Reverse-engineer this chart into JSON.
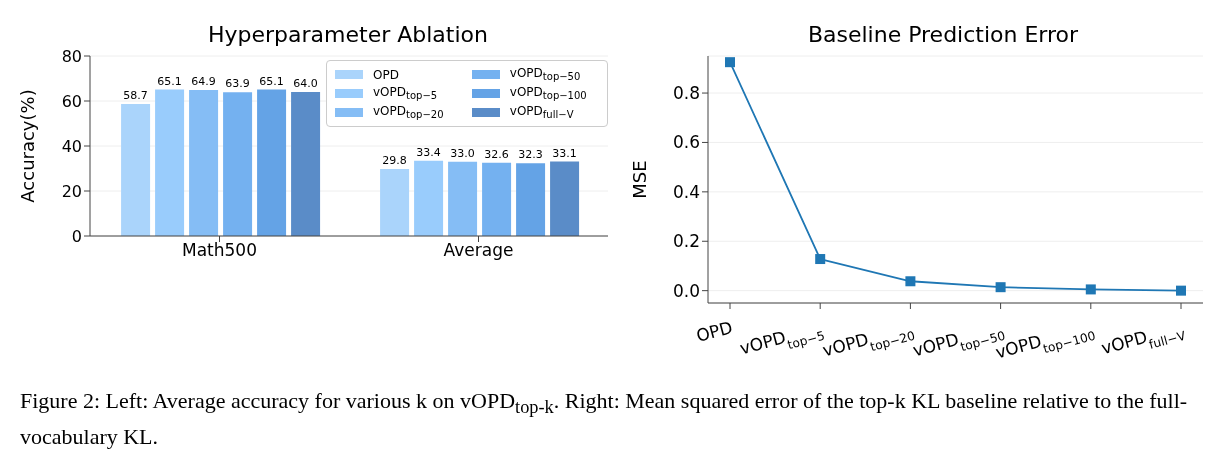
{
  "chart_data": [
    {
      "type": "bar",
      "title": "Hyperparameter Ablation",
      "ylabel": "Accuracy(%)",
      "categories": [
        "Math500",
        "Average"
      ],
      "series": [
        {
          "name": "OPD",
          "color": "#aad4fb",
          "values": [
            58.7,
            29.8
          ],
          "value_labels": [
            "58.7",
            "29.8"
          ]
        },
        {
          "name": "vOPD$_{top−5}$",
          "color": "#99ccfc",
          "values": [
            65.1,
            33.4
          ],
          "value_labels": [
            "65.1",
            "33.4"
          ]
        },
        {
          "name": "vOPD$_{top−20}$",
          "color": "#85bdf5",
          "values": [
            64.9,
            33.0
          ],
          "value_labels": [
            "64.9",
            "33.0"
          ]
        },
        {
          "name": "vOPD$_{top−50}$",
          "color": "#74b1f0",
          "values": [
            63.9,
            32.6
          ],
          "value_labels": [
            "63.9",
            "32.6"
          ]
        },
        {
          "name": "vOPD$_{top−100}$",
          "color": "#64a3e6",
          "values": [
            65.1,
            32.3
          ],
          "value_labels": [
            "65.1",
            "32.3"
          ]
        },
        {
          "name": "vOPD$_{full−V}$",
          "color": "#5a8cc8",
          "values": [
            64.0,
            33.1
          ],
          "value_labels": [
            "64.0",
            "33.1"
          ]
        }
      ],
      "ylim": [
        0,
        80
      ],
      "yticks": [
        0,
        20,
        40,
        60,
        80
      ],
      "grid": "y",
      "legend": "top right"
    },
    {
      "type": "line",
      "title": "Baseline Prediction Error",
      "ylabel": "MSE",
      "categories": [
        "OPD",
        "vOPD$_{top−5}$",
        "vOPD$_{top−20}$",
        "vOPD$_{top−50}$",
        "vOPD$_{top−100}$",
        "vOPD$_{full−V}$"
      ],
      "series": [
        {
          "color": "#1f77b4",
          "values": [
            0.925,
            0.128,
            0.038,
            0.014,
            0.005,
            0.0
          ]
        }
      ],
      "ylim": [
        -0.05,
        0.95
      ],
      "yticks": [
        {
          "value": 0,
          "label": "0.0"
        },
        0.2,
        0.4,
        0.6,
        0.8
      ],
      "grid": "y",
      "marker": "square",
      "line_style": "solid",
      "annotations": [
        "Figure 2: Left: Average accuracy for various k on vOPD$_{top-k}$. Right: Mean squared error of the top-k KL baseline relative to the full-vocabulary KL."
      ]
    }
  ]
}
